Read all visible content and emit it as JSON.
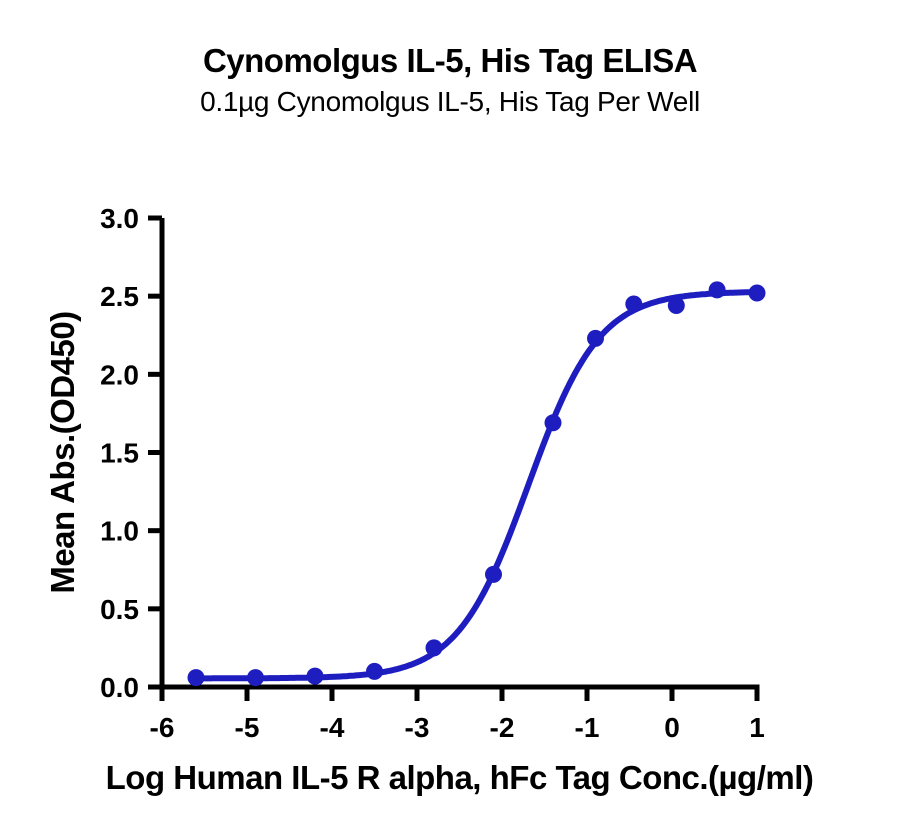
{
  "chart_data": {
    "type": "scatter",
    "title": "Cynomolgus IL-5, His Tag ELISA",
    "subtitle": "0.1µg Cynomolgus IL-5, His Tag Per Well",
    "xlabel": "Log Human IL-5 R alpha, hFc Tag Conc.(µg/ml)",
    "ylabel": "Mean Abs.(OD450)",
    "xlim": [
      -6,
      1
    ],
    "ylim": [
      0,
      3
    ],
    "x_ticks": [
      -6,
      -5,
      -4,
      -3,
      -2,
      -1,
      0,
      1
    ],
    "x_tick_labels": [
      "-6",
      "-5",
      "-4",
      "-3",
      "-2",
      "-1",
      "0",
      "1"
    ],
    "y_ticks": [
      0,
      0.5,
      1,
      1.5,
      2,
      2.5,
      3
    ],
    "y_tick_labels": [
      "0.0",
      "0.5",
      "1.0",
      "1.5",
      "2.0",
      "2.5",
      "3.0"
    ],
    "grid": false,
    "legend": "none",
    "series": [
      {
        "color": "#1e1ec0",
        "x": [
          -5.6,
          -4.9,
          -4.2,
          -3.5,
          -2.8,
          -2.1,
          -1.4,
          -0.9,
          -0.45,
          0.05,
          0.53,
          1.0
        ],
        "y": [
          0.06,
          0.06,
          0.07,
          0.1,
          0.25,
          0.72,
          1.69,
          2.23,
          2.45,
          2.44,
          2.54,
          2.52
        ]
      }
    ],
    "fit_curve": {
      "model": "4PL",
      "bottom": 0.055,
      "top": 2.53,
      "log_ec50": -1.69,
      "hill": 1.04,
      "x_start": -5.6,
      "x_end": 1.0
    },
    "axis_color": "#000000"
  }
}
